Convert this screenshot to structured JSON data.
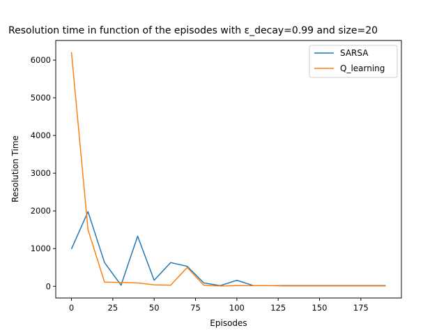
{
  "chart_data": {
    "type": "line",
    "title": "Resolution time in function of the episodes with ε_decay=0.99 and size=20",
    "xlabel": "Episodes",
    "ylabel": "Resolution Time",
    "xlim": [
      -9.5,
      199.5
    ],
    "ylim": [
      -310,
      6520
    ],
    "xticks": [
      0,
      25,
      50,
      75,
      100,
      125,
      150,
      175
    ],
    "yticks": [
      0,
      1000,
      2000,
      3000,
      4000,
      5000,
      6000
    ],
    "grid": false,
    "legend": "top-right",
    "x": [
      0,
      10,
      20,
      30,
      40,
      50,
      60,
      70,
      80,
      90,
      100,
      110,
      120,
      130,
      140,
      150,
      160,
      170,
      180,
      190
    ],
    "series": [
      {
        "name": "SARSA",
        "color": "#1f77b4",
        "values": [
          990,
          1980,
          630,
          30,
          1330,
          160,
          630,
          530,
          90,
          20,
          160,
          20,
          20,
          20,
          20,
          20,
          20,
          20,
          20,
          20
        ]
      },
      {
        "name": "Q_learning",
        "color": "#ff7f0e",
        "values": [
          6210,
          1500,
          110,
          100,
          90,
          40,
          30,
          500,
          30,
          10,
          20,
          20,
          20,
          10,
          10,
          10,
          10,
          10,
          10,
          10
        ]
      }
    ]
  }
}
